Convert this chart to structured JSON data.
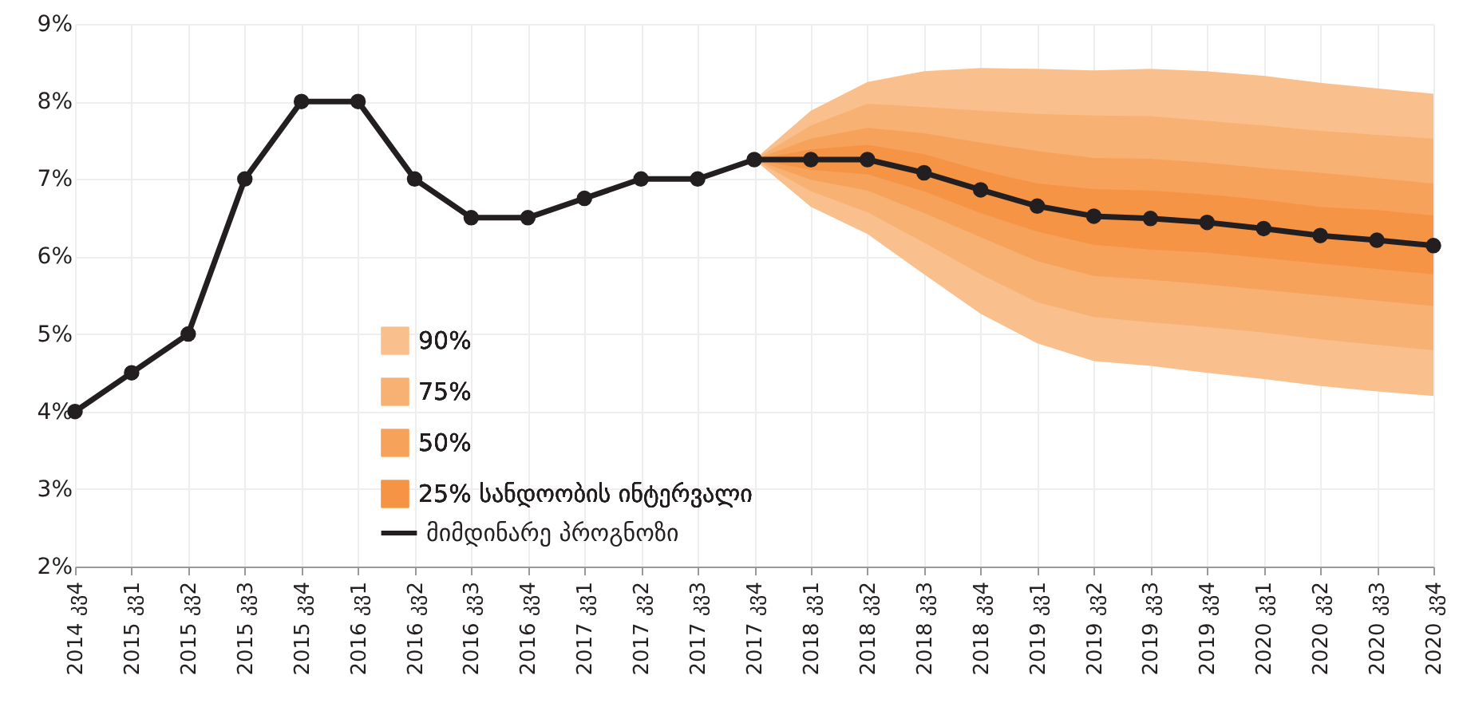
{
  "chart_data": {
    "type": "line",
    "categories": [
      "2014 კვ4",
      "2015 კვ1",
      "2015 კვ2",
      "2015 კვ3",
      "2015 კვ4",
      "2016 კვ1",
      "2016 კვ2",
      "2016 კვ3",
      "2016 კვ4",
      "2017 კვ1",
      "2017 კვ2",
      "2017 კვ3",
      "2017 კვ4",
      "2018 კვ1",
      "2018 კვ2",
      "2018 კვ3",
      "2018 კვ4",
      "2019 კვ1",
      "2019 კვ2",
      "2019 კვ3",
      "2019 კვ4",
      "2020 კვ1",
      "2020 კვ2",
      "2020 კვ3",
      "2020 კვ4"
    ],
    "ylim": [
      2,
      9
    ],
    "yticks": [
      {
        "value": 2,
        "label": "2%"
      },
      {
        "value": 3,
        "label": "3%"
      },
      {
        "value": 4,
        "label": "4%"
      },
      {
        "value": 5,
        "label": "5%"
      },
      {
        "value": 6,
        "label": "6%"
      },
      {
        "value": 7,
        "label": "7%"
      },
      {
        "value": 8,
        "label": "8%"
      },
      {
        "value": 9,
        "label": "9%"
      }
    ],
    "grid": true,
    "legend": "bottom left",
    "series": [
      {
        "name": "90%",
        "type": "area",
        "color": "#f9c08e",
        "values": [
          null,
          null,
          null,
          null,
          null,
          null,
          null,
          null,
          null,
          null,
          null,
          null,
          null,
          null,
          null,
          null,
          null,
          null,
          null,
          null,
          null,
          null,
          null,
          null,
          null
        ],
        "lower": [
          null,
          null,
          null,
          null,
          null,
          null,
          null,
          null,
          null,
          null,
          null,
          null,
          7.25,
          6.64,
          6.29,
          5.77,
          5.26,
          4.88,
          4.65,
          4.59,
          4.5,
          4.42,
          4.33,
          4.26,
          4.2
        ],
        "upper": [
          null,
          null,
          null,
          null,
          null,
          null,
          null,
          null,
          null,
          null,
          null,
          null,
          7.25,
          7.88,
          8.25,
          8.39,
          8.43,
          8.42,
          8.4,
          8.42,
          8.39,
          8.33,
          8.24,
          8.17,
          8.1
        ]
      },
      {
        "name": "75%",
        "type": "area",
        "color": "#f7b173",
        "values": [
          null,
          null,
          null,
          null,
          null,
          null,
          null,
          null,
          null,
          null,
          null,
          null,
          null,
          null,
          null,
          null,
          null,
          null,
          null,
          null,
          null,
          null,
          null,
          null,
          null
        ],
        "lower": [
          null,
          null,
          null,
          null,
          null,
          null,
          null,
          null,
          null,
          null,
          null,
          null,
          7.25,
          6.84,
          6.57,
          6.18,
          5.77,
          5.41,
          5.22,
          5.15,
          5.09,
          5.02,
          4.93,
          4.86,
          4.79
        ],
        "upper": [
          null,
          null,
          null,
          null,
          null,
          null,
          null,
          null,
          null,
          null,
          null,
          null,
          7.25,
          7.69,
          7.97,
          7.93,
          7.88,
          7.84,
          7.82,
          7.81,
          7.75,
          7.69,
          7.62,
          7.57,
          7.52
        ]
      },
      {
        "name": "50%",
        "type": "area",
        "color": "#f6a25a",
        "values": [
          null,
          null,
          null,
          null,
          null,
          null,
          null,
          null,
          null,
          null,
          null,
          null,
          null,
          null,
          null,
          null,
          null,
          null,
          null,
          null,
          null,
          null,
          null,
          null,
          null
        ],
        "lower": [
          null,
          null,
          null,
          null,
          null,
          null,
          null,
          null,
          null,
          null,
          null,
          null,
          7.25,
          6.99,
          6.85,
          6.56,
          6.25,
          5.94,
          5.75,
          5.7,
          5.64,
          5.57,
          5.5,
          5.43,
          5.36
        ],
        "upper": [
          null,
          null,
          null,
          null,
          null,
          null,
          null,
          null,
          null,
          null,
          null,
          null,
          7.25,
          7.52,
          7.66,
          7.59,
          7.47,
          7.36,
          7.27,
          7.26,
          7.21,
          7.14,
          7.08,
          7.01,
          6.94
        ]
      },
      {
        "name": "25% სანდოობის ინტერვალი",
        "type": "area",
        "color": "#f59444",
        "values": [
          null,
          null,
          null,
          null,
          null,
          null,
          null,
          null,
          null,
          null,
          null,
          null,
          null,
          null,
          null,
          null,
          null,
          null,
          null,
          null,
          null,
          null,
          null,
          null,
          null
        ],
        "lower": [
          null,
          null,
          null,
          null,
          null,
          null,
          null,
          null,
          null,
          null,
          null,
          null,
          7.25,
          7.12,
          7.06,
          6.84,
          6.56,
          6.32,
          6.15,
          6.09,
          6.05,
          5.98,
          5.91,
          5.84,
          5.77
        ],
        "upper": [
          null,
          null,
          null,
          null,
          null,
          null,
          null,
          null,
          null,
          null,
          null,
          null,
          7.25,
          7.38,
          7.44,
          7.32,
          7.11,
          6.94,
          6.87,
          6.85,
          6.8,
          6.73,
          6.64,
          6.6,
          6.53
        ]
      },
      {
        "name": "მიმდინარე პროგნოზი",
        "type": "line",
        "color": "#231f20",
        "marker": "circle",
        "line_style": "solid",
        "values": [
          4,
          4.5,
          5,
          7,
          8,
          8,
          7,
          6.5,
          6.5,
          6.75,
          7,
          7,
          7.25,
          7.25,
          7.25,
          7.08,
          6.86,
          6.65,
          6.52,
          6.49,
          6.44,
          6.36,
          6.27,
          6.21,
          6.14
        ]
      }
    ]
  }
}
